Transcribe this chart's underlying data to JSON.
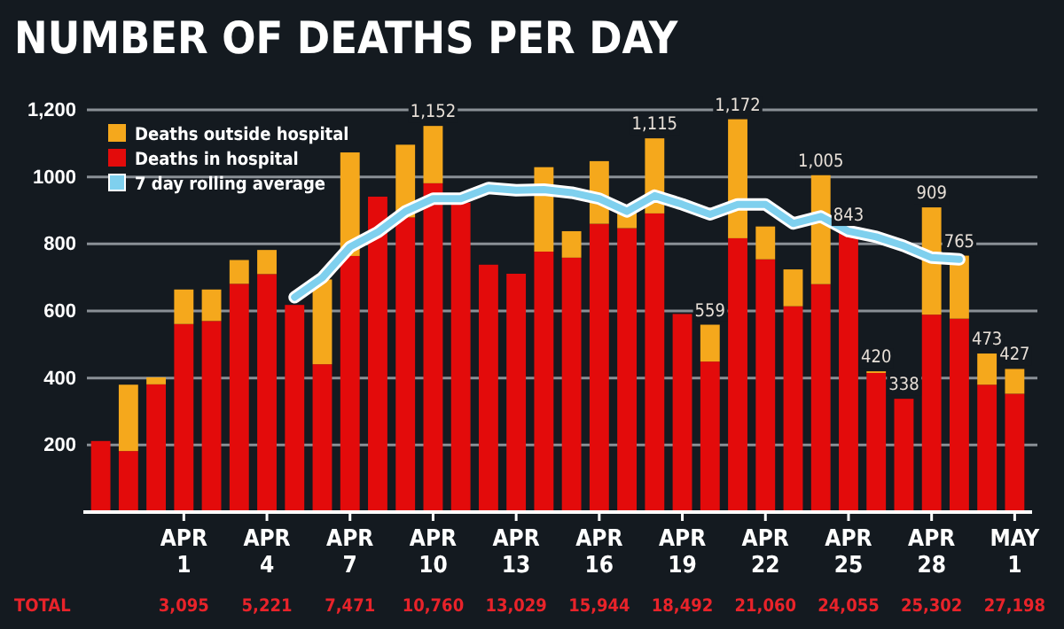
{
  "chart_data": {
    "type": "bar",
    "title": "NUMBER OF DEATHS PER DAY",
    "stacked": true,
    "categories": [
      null,
      null,
      null,
      "APR 1",
      null,
      null,
      "APR 4",
      null,
      null,
      "APR 7",
      null,
      null,
      "APR 10",
      null,
      null,
      "APR 13",
      null,
      null,
      "APR 16",
      null,
      null,
      "APR 19",
      null,
      null,
      "APR 22",
      null,
      null,
      "APR 25",
      null,
      null,
      "APR 28",
      null,
      null,
      "MAY 1"
    ],
    "series": [
      {
        "name": "Deaths in hospital",
        "color": "#e30b0b",
        "values": [
          212,
          182,
          381,
          561,
          570,
          681,
          710,
          618,
          441,
          764,
          941,
          879,
          981,
          923,
          738,
          711,
          777,
          759,
          860,
          847,
          891,
          591,
          449,
          817,
          754,
          614,
          680,
          843,
          415,
          338,
          589,
          577,
          380,
          353
        ]
      },
      {
        "name": "Deaths outside hospital",
        "color": "#f5a81c",
        "values": [
          0,
          198,
          21,
          103,
          94,
          71,
          72,
          0,
          253,
          309,
          0,
          217,
          171,
          0,
          0,
          0,
          252,
          79,
          187,
          50,
          224,
          0,
          110,
          355,
          98,
          110,
          325,
          0,
          5,
          0,
          320,
          188,
          93,
          74
        ]
      },
      {
        "name": "7 day rolling average",
        "type": "line",
        "color": "#7fd0ee",
        "values": [
          null,
          null,
          null,
          null,
          null,
          null,
          null,
          641,
          699,
          791,
          835,
          897,
          935,
          935,
          967,
          960,
          962,
          953,
          935,
          897,
          944,
          918,
          888,
          918,
          918,
          861,
          882,
          838,
          821,
          794,
          759,
          754,
          null,
          null
        ]
      }
    ],
    "totals": [
      null,
      null,
      null,
      null,
      null,
      null,
      null,
      null,
      null,
      null,
      null,
      null,
      "1,152",
      null,
      null,
      null,
      null,
      null,
      null,
      null,
      "1,115",
      null,
      "559",
      "1,172",
      null,
      null,
      "1,005",
      "843",
      "420",
      "338",
      "909",
      "765",
      "473",
      "427"
    ],
    "ylim": [
      0,
      1200
    ],
    "yticks": [
      200,
      400,
      600,
      800,
      1000,
      {
        "value": 1200,
        "label": "1,200"
      }
    ],
    "grid": "y",
    "legend": "top left",
    "annotations": [
      "TOTAL",
      "3,095",
      "5,221",
      "7,471",
      "10,760",
      "13,029",
      "15,944",
      "18,492",
      "21,060",
      "24,055",
      "25,302",
      "27,198"
    ]
  }
}
